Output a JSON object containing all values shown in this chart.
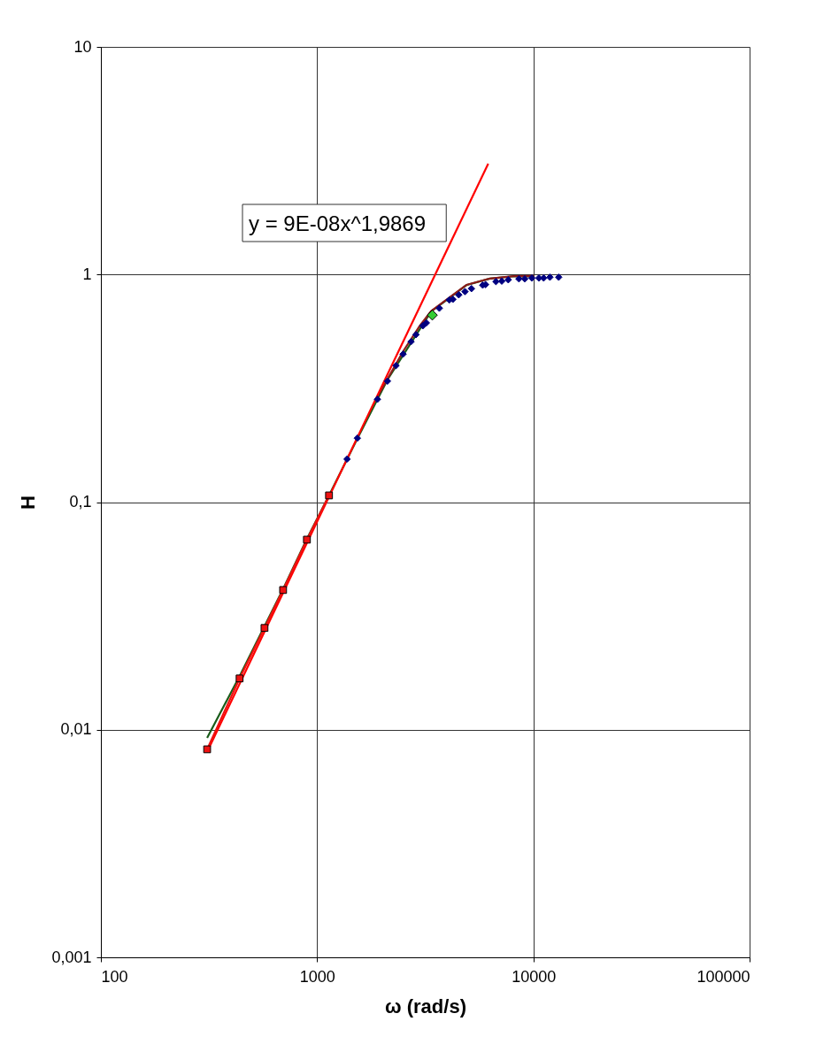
{
  "chart_data": {
    "type": "line",
    "xlabel": "ω  (rad/s)",
    "ylabel": "H",
    "log": "xy",
    "grid": true,
    "xlim": [
      100,
      100000
    ],
    "xticks": [
      100,
      1000,
      10000,
      100000
    ],
    "ylim": [
      0.001,
      10
    ],
    "yticks": [
      {
        "value": 0.001,
        "label": "0,001"
      },
      {
        "value": 0.01,
        "label": "0,01"
      },
      {
        "value": 0.1,
        "label": "0,1"
      },
      {
        "value": 1,
        "label": "1"
      },
      {
        "value": 10,
        "label": "10"
      }
    ],
    "annotations": [
      "y = 9E-08x^1,9869"
    ],
    "series": [
      {
        "color": "#1a5c1a",
        "marker": "none",
        "x": [
          310,
          438,
          571,
          696,
          897,
          1135,
          1535,
          2115,
          3365,
          4900,
          6300,
          8110,
          10090
        ],
        "values": [
          0.0092,
          0.0172,
          0.0285,
          0.0415,
          0.069,
          0.107,
          0.19,
          0.345,
          0.687,
          0.898,
          0.959,
          0.982,
          0.98
        ]
      },
      {
        "color": "#8b1a1a",
        "marker": "none",
        "x": [
          1900,
          2500,
          3000,
          3365,
          4900,
          6300,
          8110,
          10090
        ],
        "values": [
          0.29,
          0.46,
          0.6,
          0.69,
          0.9,
          0.96,
          0.983,
          0.985
        ]
      },
      {
        "color": "#ff0000",
        "marker": "none",
        "x": [
          310,
          6185
        ],
        "values": [
          0.008,
          3.07
        ]
      },
      {
        "color": "#ee1111",
        "marker": "square",
        "x": [
          310,
          438,
          571,
          696,
          897,
          1135
        ],
        "values": [
          0.0082,
          0.0168,
          0.028,
          0.0411,
          0.0684,
          0.107
        ]
      },
      {
        "type": "scatter",
        "color": "#000080",
        "marker": "diamond",
        "x": [
          1375,
          1535,
          1901,
          2115,
          2317,
          2498,
          2719,
          2866,
          3082,
          3200,
          3675,
          4086,
          4246,
          4519,
          4830,
          5174,
          5831,
          6012,
          6714,
          7145,
          7656,
          8576,
          9126,
          9845,
          10610,
          11160,
          11930,
          13100
        ],
        "values": [
          0.1545,
          0.191,
          0.283,
          0.34,
          0.398,
          0.447,
          0.507,
          0.544,
          0.595,
          0.613,
          0.711,
          0.773,
          0.778,
          0.814,
          0.841,
          0.867,
          0.898,
          0.903,
          0.931,
          0.935,
          0.948,
          0.957,
          0.957,
          0.965,
          0.965,
          0.965,
          0.973,
          0.973
        ]
      },
      {
        "type": "scatter",
        "color": "#33cc33",
        "marker": "diamond",
        "x": [
          3410
        ],
        "values": [
          0.663
        ]
      }
    ]
  }
}
